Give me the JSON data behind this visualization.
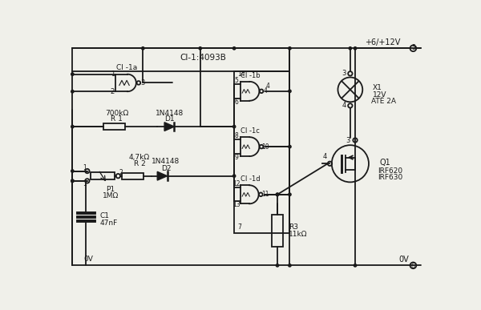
{
  "bg_color": "#f0f0ea",
  "line_color": "#1a1a1a",
  "text_color": "#1a1a1a",
  "figsize": [
    6.0,
    3.87
  ],
  "dpi": 100,
  "labels": {
    "ci1a": "CI -1a",
    "ci1_main": "CI-1:4093B",
    "ci1b": "CI -1b",
    "ci1c": "CI -1c",
    "ci1d": "CI -1d",
    "r1": "R 1",
    "r1v": "700kΩ",
    "d1": "D1",
    "d1v": "1N4148",
    "r2": "R 2",
    "r2v": "4,7kΩ",
    "d2": "D2",
    "d2v": "1N4148",
    "p1": "P1",
    "p1v": "1MΩ",
    "c1": "C1",
    "c1v": "47nF",
    "r3": "R3",
    "r3v": "11kΩ",
    "x1": "X1",
    "x1v": "12V",
    "x1v2": "ATÉ 2A",
    "q1": "Q1",
    "q1v": "IRF620",
    "q1v2": "IRF630",
    "vplus": "+6/+12V",
    "vgnd": "0V",
    "pin3": "3",
    "pin4": "4",
    "pin5": "5",
    "pin6": "6"
  }
}
